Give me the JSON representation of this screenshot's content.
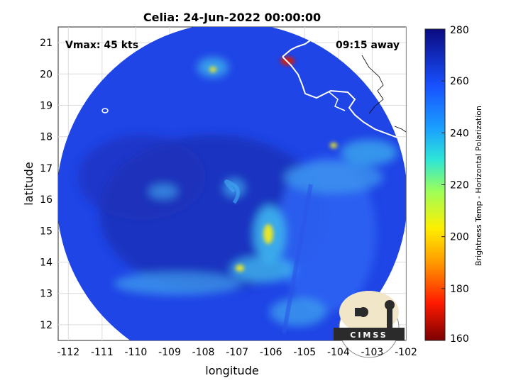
{
  "title": "Celia: 24-Jun-2022 00:00:00",
  "vmax_label": "Vmax: 45 kts",
  "time_away_label": "09:15 away",
  "xlabel": "longitude",
  "ylabel": "latitude",
  "x_ticks": [
    "-112",
    "-111",
    "-110",
    "-109",
    "-108",
    "-107",
    "-106",
    "-105",
    "-104",
    "-103",
    "-102"
  ],
  "y_ticks": [
    "12",
    "13",
    "14",
    "15",
    "16",
    "17",
    "18",
    "19",
    "20",
    "21"
  ],
  "xlim": [
    -112.3,
    -102
  ],
  "ylim": [
    11.5,
    21.5
  ],
  "colorbar": {
    "label": "Brightness Temp - Horizontal Polarization",
    "ticks": [
      "160",
      "180",
      "200",
      "220",
      "240",
      "260",
      "280"
    ],
    "range": [
      160,
      280
    ]
  },
  "logo_text": "CIMSS",
  "colors": {
    "background_field": "#1f45e6",
    "warm_core": "#1c2fb8",
    "convective_cyan": "#3fb6ee",
    "convective_yellow": "#e8e62a",
    "coastline": "#ffffff"
  }
}
